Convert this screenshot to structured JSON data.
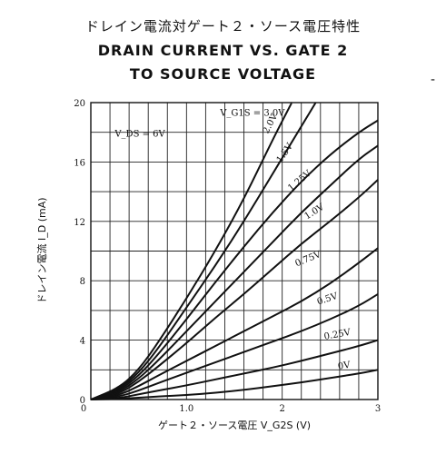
{
  "chart_data": {
    "type": "line",
    "title_jp": "ドレイン電流対ゲート２・ソース電圧特性",
    "title_en_line1": "DRAIN CURRENT VS. GATE 2",
    "title_en_line2": "TO SOURCE VOLTAGE",
    "ylabel": "ドレイン電流 I_D (mA)",
    "xlabel": "ゲート２・ソース電圧 V_G2S (V)",
    "xlim": [
      0,
      3
    ],
    "ylim": [
      0,
      20
    ],
    "grid": true,
    "x_ticks": [
      "0",
      "1.0",
      "2",
      "3"
    ],
    "y_ticks": [
      "0",
      "4",
      "8",
      "12",
      "16",
      "20"
    ],
    "condition_label": "V_DS = 6V",
    "series_group_label": "V_G1S = 3.0V",
    "series": [
      {
        "name": "3.0V",
        "x": [
          0,
          0.3,
          0.5,
          0.7,
          1.0,
          1.3,
          1.6,
          1.9,
          2.1
        ],
        "y": [
          0,
          0.8,
          2,
          3.8,
          6.8,
          10,
          13.5,
          17.5,
          20
        ]
      },
      {
        "name": "2.0V",
        "x": [
          0,
          0.3,
          0.5,
          0.7,
          1.0,
          1.3,
          1.6,
          1.9,
          2.2,
          2.35
        ],
        "y": [
          0,
          0.7,
          1.8,
          3.4,
          6.2,
          9,
          12,
          15.2,
          18.4,
          20
        ]
      },
      {
        "name": "1.5V",
        "x": [
          0,
          0.3,
          0.5,
          0.7,
          1.0,
          1.3,
          1.6,
          1.9,
          2.2,
          2.5,
          2.8,
          3.0
        ],
        "y": [
          0,
          0.6,
          1.6,
          3,
          5.4,
          7.9,
          10.3,
          12.6,
          14.7,
          16.5,
          18,
          18.8
        ]
      },
      {
        "name": "1.25V",
        "x": [
          0,
          0.3,
          0.5,
          0.7,
          1.0,
          1.3,
          1.6,
          1.9,
          2.2,
          2.5,
          2.8,
          3.0
        ],
        "y": [
          0,
          0.5,
          1.4,
          2.6,
          4.6,
          6.6,
          8.6,
          10.6,
          12.6,
          14.4,
          16.2,
          17.1
        ]
      },
      {
        "name": "1.0V",
        "x": [
          0,
          0.3,
          0.5,
          0.7,
          1.0,
          1.3,
          1.6,
          1.9,
          2.2,
          2.5,
          2.8,
          3.0
        ],
        "y": [
          0,
          0.4,
          1.2,
          2.2,
          3.8,
          5.5,
          7.1,
          8.8,
          10.5,
          12,
          13.6,
          14.8
        ]
      },
      {
        "name": "0.75V",
        "x": [
          0,
          0.3,
          0.5,
          0.7,
          1.0,
          1.3,
          1.6,
          1.9,
          2.2,
          2.5,
          2.8,
          3.0
        ],
        "y": [
          0,
          0.3,
          0.9,
          1.6,
          2.6,
          3.6,
          4.6,
          5.6,
          6.6,
          7.8,
          9.2,
          10.2
        ]
      },
      {
        "name": "0.5V",
        "x": [
          0,
          0.3,
          0.5,
          0.7,
          1.0,
          1.3,
          1.6,
          1.9,
          2.2,
          2.5,
          2.8,
          3.0
        ],
        "y": [
          0,
          0.2,
          0.6,
          1.1,
          1.8,
          2.5,
          3.2,
          3.9,
          4.6,
          5.4,
          6.3,
          7.1
        ]
      },
      {
        "name": "0.25V",
        "x": [
          0,
          0.3,
          0.5,
          0.7,
          1.0,
          1.3,
          1.6,
          1.9,
          2.2,
          2.5,
          2.8,
          3.0
        ],
        "y": [
          0,
          0.1,
          0.35,
          0.6,
          0.95,
          1.35,
          1.75,
          2.15,
          2.6,
          3.1,
          3.6,
          4.0
        ]
      },
      {
        "name": "0V",
        "x": [
          0,
          0.3,
          0.5,
          0.7,
          1.0,
          1.3,
          1.6,
          1.9,
          2.2,
          2.5,
          2.8,
          3.0
        ],
        "y": [
          0,
          0.05,
          0.12,
          0.2,
          0.3,
          0.45,
          0.65,
          0.9,
          1.15,
          1.45,
          1.75,
          2.0
        ]
      }
    ],
    "curve_labels": [
      {
        "text": "2.0V",
        "x": 1.9,
        "y": 18.5,
        "angle": -62
      },
      {
        "text": "1.5V",
        "x": 2.05,
        "y": 16.5,
        "angle": -55
      },
      {
        "text": "1.25V",
        "x": 2.2,
        "y": 14.6,
        "angle": -40
      },
      {
        "text": "1.0V",
        "x": 2.35,
        "y": 12.5,
        "angle": -32
      },
      {
        "text": "0.75V",
        "x": 2.28,
        "y": 9.3,
        "angle": -22
      },
      {
        "text": "0.5V",
        "x": 2.48,
        "y": 6.6,
        "angle": -18
      },
      {
        "text": "0.25V",
        "x": 2.58,
        "y": 4.2,
        "angle": -10
      },
      {
        "text": "0V",
        "x": 2.65,
        "y": 2.1,
        "angle": -8
      }
    ]
  },
  "misc": {
    "edge_mark": "-"
  }
}
